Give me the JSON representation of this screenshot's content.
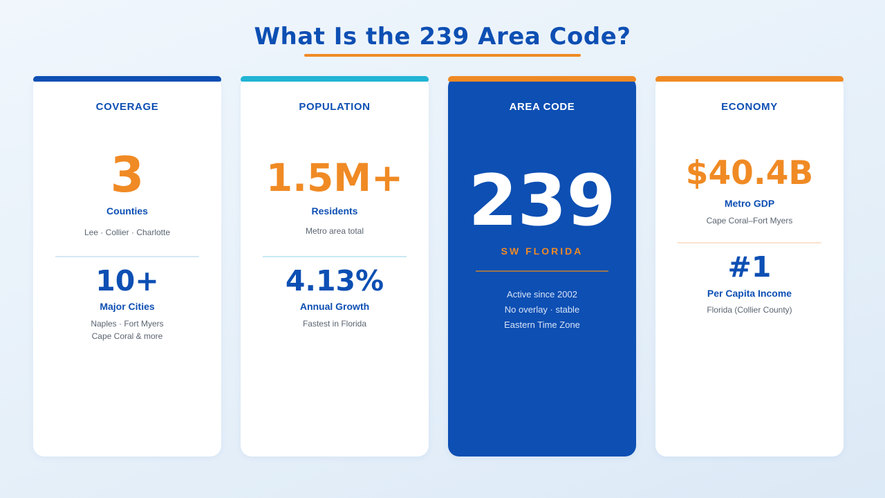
{
  "title": "What Is the 239 Area Code?",
  "colors": {
    "brand_blue": "#0d4fb3",
    "accent_orange": "#f08a24",
    "accent_teal": "#21b4d4"
  },
  "cards": {
    "coverage": {
      "heading": "COVERAGE",
      "primary": {
        "value": "3",
        "label": "Counties",
        "detail": "Lee · Collier · Charlotte"
      },
      "secondary": {
        "value": "10+",
        "label": "Major Cities",
        "detail_lines": [
          "Naples · Fort Myers",
          "Cape Coral & more"
        ]
      }
    },
    "population": {
      "heading": "POPULATION",
      "primary": {
        "value": "1.5M+",
        "label": "Residents",
        "detail": "Metro area total"
      },
      "secondary": {
        "value": "4.13%",
        "label": "Annual Growth",
        "detail": "Fastest in Florida"
      }
    },
    "area_code": {
      "heading": "AREA CODE",
      "value": "239",
      "region": "SW FLORIDA",
      "notes": [
        "Active since 2002",
        "No overlay · stable",
        "Eastern Time Zone"
      ]
    },
    "economy": {
      "heading": "ECONOMY",
      "primary": {
        "value": "$40.4B",
        "label": "Metro GDP",
        "detail": "Cape Coral–Fort Myers"
      },
      "secondary": {
        "value": "#1",
        "label": "Per Capita Income",
        "detail": "Florida (Collier County)"
      }
    }
  }
}
